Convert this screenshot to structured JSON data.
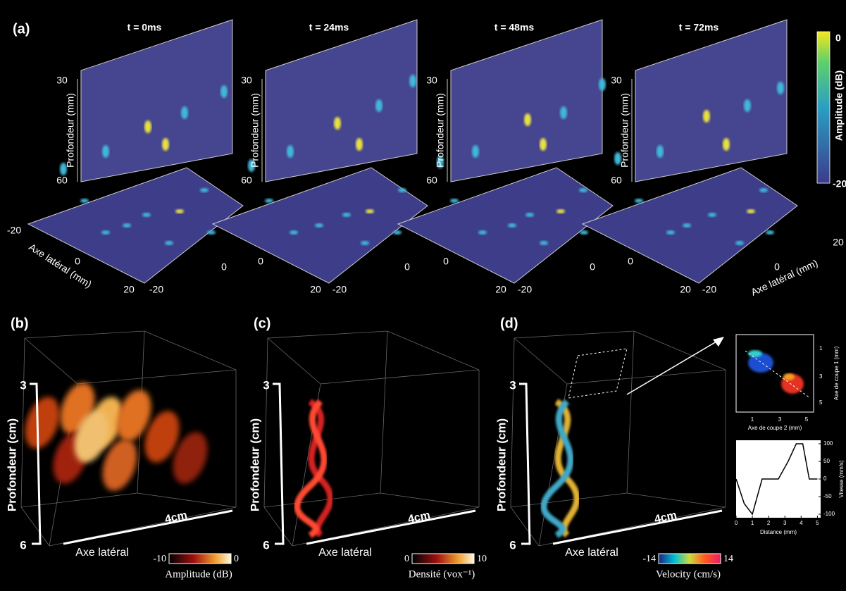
{
  "panel_a": {
    "label": "(a)",
    "frames": [
      {
        "time": "t = 0ms",
        "depth_ticks": [
          "30",
          "60"
        ],
        "depth_label": "Profondeur (mm)",
        "lateral_ticks": [
          "-20",
          "0",
          "20",
          "-20",
          "0"
        ],
        "lateral_label": "Axe latéral (mm)"
      },
      {
        "time": "t = 24ms",
        "depth_ticks": [
          "30",
          "60"
        ],
        "depth_label": "Profondeur (mm)",
        "lateral_ticks": [
          "0",
          "20",
          "-20",
          "0"
        ]
      },
      {
        "time": "t = 48ms",
        "depth_ticks": [
          "30",
          "60"
        ],
        "depth_label": "Profondeur (mm)",
        "lateral_ticks": [
          "0",
          "20",
          "-20",
          "0"
        ]
      },
      {
        "time": "t = 72ms",
        "depth_ticks": [
          "30",
          "60"
        ],
        "depth_label": "Profondeur (mm)",
        "lateral_ticks": [
          "0",
          "20",
          "-20",
          "0",
          "20"
        ],
        "lateral_label": "Axe latéral (mm)"
      }
    ],
    "colorbar": {
      "label": "Amplitude (dB)",
      "ticks": [
        "0",
        "-20"
      ]
    }
  },
  "panel_b": {
    "label": "(b)",
    "depth_ticks": [
      "3",
      "6"
    ],
    "depth_label": "Profondeur (cm)",
    "scale": "4cm",
    "lateral_label": "Axe latéral",
    "colorbar": {
      "label": "Amplitude (dB)",
      "ticks": [
        "-10",
        "0"
      ]
    }
  },
  "panel_c": {
    "label": "(c)",
    "depth_ticks": [
      "3",
      "6"
    ],
    "depth_label": "Profondeur (cm)",
    "scale": "4cm",
    "lateral_label": "Axe latéral",
    "colorbar": {
      "label": "Densité (vox⁻¹)",
      "ticks": [
        "0",
        "10"
      ]
    }
  },
  "panel_d": {
    "label": "(d)",
    "depth_ticks": [
      "3",
      "6"
    ],
    "depth_label": "Profondeur (cm)",
    "scale": "4cm",
    "lateral_label": "Axe latéral",
    "colorbar": {
      "label": "Velocity (cm/s)",
      "ticks": [
        "-14",
        "14"
      ]
    },
    "section": {
      "y_label": "Axe de coupe 1 (mm)",
      "y_ticks": [
        "1",
        "3",
        "5"
      ],
      "x_label": "Axe de coupe 2 (mm)",
      "x_ticks": [
        "1",
        "3",
        "5"
      ]
    },
    "velocity_plot": {
      "type": "line",
      "y_label": "Vitesse (mm/s)",
      "x_label": "Distance (mm)",
      "x": [
        0,
        0.5,
        1,
        1.6,
        2.6,
        3.2,
        3.7,
        4.1,
        4.5,
        5
      ],
      "y": [
        0,
        -70,
        -100,
        0,
        0,
        50,
        100,
        100,
        0,
        0
      ],
      "xlim": [
        0,
        5.2
      ],
      "ylim": [
        -110,
        110
      ],
      "xticks": [
        0,
        1,
        2,
        3,
        4,
        5
      ],
      "yticks": [
        100,
        50,
        0,
        -50,
        -100
      ]
    }
  }
}
